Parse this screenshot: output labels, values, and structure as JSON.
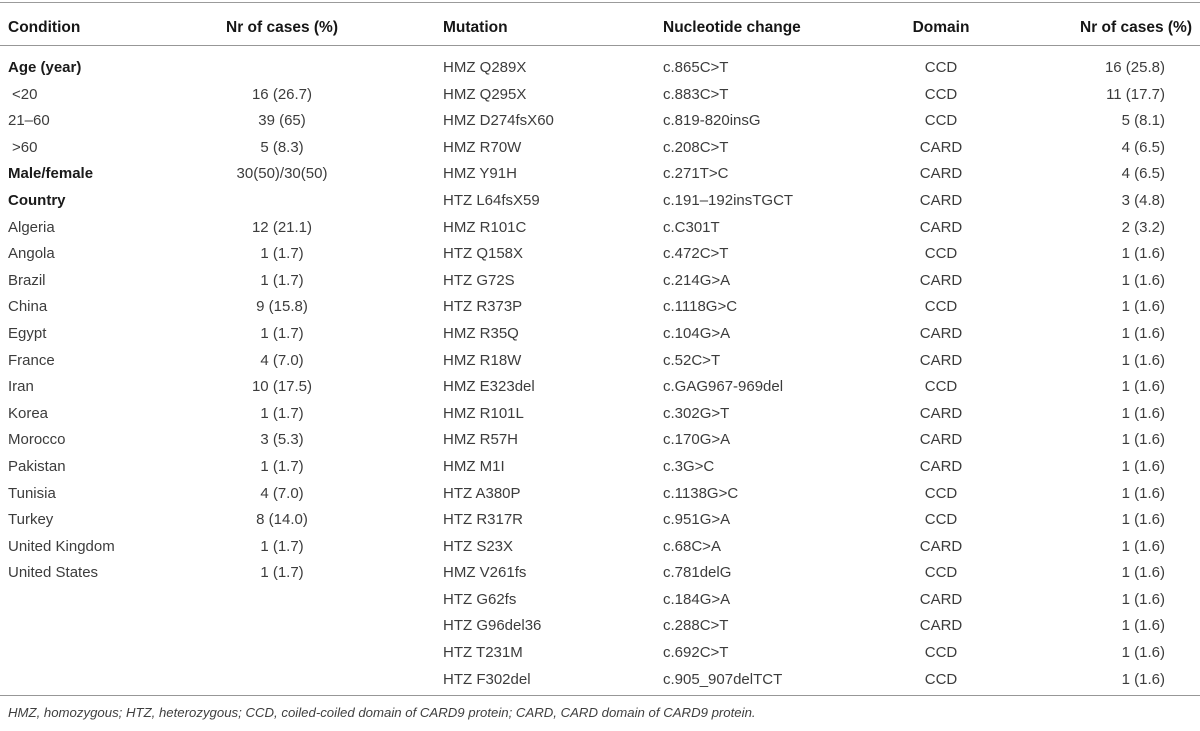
{
  "table": {
    "columns": [
      {
        "key": "condition",
        "label": "Condition"
      },
      {
        "key": "cases",
        "label": "Nr of cases (%)"
      },
      {
        "key": "mutation",
        "label": "Mutation"
      },
      {
        "key": "nucleotide",
        "label": "Nucleotide change"
      },
      {
        "key": "domain",
        "label": "Domain"
      },
      {
        "key": "cases2",
        "label": "Nr of cases (%)"
      }
    ],
    "rows": [
      {
        "condition": "Age (year)",
        "bold": true,
        "cases": "",
        "mutation": "HMZ Q289X",
        "nucleotide": "c.865C>T",
        "domain": "CCD",
        "cases2": "16 (25.8)"
      },
      {
        "condition": "<20",
        "indent": true,
        "cases": "16 (26.7)",
        "mutation": "HMZ Q295X",
        "nucleotide": "c.883C>T",
        "domain": "CCD",
        "cases2": "11 (17.7)"
      },
      {
        "condition": "21–60",
        "cases": "39 (65)",
        "mutation": "HMZ D274fsX60",
        "nucleotide": "c.819-820insG",
        "domain": "CCD",
        "cases2": "5 (8.1)"
      },
      {
        "condition": ">60",
        "indent": true,
        "cases": "5 (8.3)",
        "mutation": "HMZ R70W",
        "nucleotide": "c.208C>T",
        "domain": "CARD",
        "cases2": "4 (6.5)"
      },
      {
        "condition": "Male/female",
        "bold": true,
        "cases": "30(50)/30(50)",
        "mutation": "HMZ Y91H",
        "nucleotide": "c.271T>C",
        "domain": "CARD",
        "cases2": "4 (6.5)"
      },
      {
        "condition": "Country",
        "bold": true,
        "cases": "",
        "mutation": "HTZ L64fsX59",
        "nucleotide": "c.191–192insTGCT",
        "domain": "CARD",
        "cases2": "3 (4.8)"
      },
      {
        "condition": "Algeria",
        "cases": "12 (21.1)",
        "mutation": "HMZ R101C",
        "nucleotide": "c.C301T",
        "domain": "CARD",
        "cases2": "2 (3.2)"
      },
      {
        "condition": "Angola",
        "cases": "1 (1.7)",
        "mutation": "HTZ Q158X",
        "nucleotide": "c.472C>T",
        "domain": "CCD",
        "cases2": "1 (1.6)"
      },
      {
        "condition": "Brazil",
        "cases": "1 (1.7)",
        "mutation": "HTZ G72S",
        "nucleotide": "c.214G>A",
        "domain": "CARD",
        "cases2": "1 (1.6)"
      },
      {
        "condition": "China",
        "cases": "9 (15.8)",
        "mutation": "HTZ R373P",
        "nucleotide": "c.1118G>C",
        "domain": "CCD",
        "cases2": "1 (1.6)"
      },
      {
        "condition": "Egypt",
        "cases": "1 (1.7)",
        "mutation": "HMZ R35Q",
        "nucleotide": "c.104G>A",
        "domain": "CARD",
        "cases2": "1 (1.6)"
      },
      {
        "condition": "France",
        "cases": "4 (7.0)",
        "mutation": "HMZ R18W",
        "nucleotide": "c.52C>T",
        "domain": "CARD",
        "cases2": "1 (1.6)"
      },
      {
        "condition": "Iran",
        "cases": "10 (17.5)",
        "mutation": "HMZ E323del",
        "nucleotide": "c.GAG967-969del",
        "domain": "CCD",
        "cases2": "1 (1.6)"
      },
      {
        "condition": "Korea",
        "cases": "1 (1.7)",
        "mutation": "HMZ R101L",
        "nucleotide": "c.302G>T",
        "domain": "CARD",
        "cases2": "1 (1.6)"
      },
      {
        "condition": "Morocco",
        "cases": "3 (5.3)",
        "mutation": "HMZ R57H",
        "nucleotide": "c.170G>A",
        "domain": "CARD",
        "cases2": "1 (1.6)"
      },
      {
        "condition": "Pakistan",
        "cases": "1 (1.7)",
        "mutation": "HMZ M1I",
        "nucleotide": "c.3G>C",
        "domain": "CARD",
        "cases2": "1 (1.6)"
      },
      {
        "condition": "Tunisia",
        "cases": "4 (7.0)",
        "mutation": "HTZ A380P",
        "nucleotide": "c.1138G>C",
        "domain": "CCD",
        "cases2": "1 (1.6)"
      },
      {
        "condition": "Turkey",
        "cases": "8 (14.0)",
        "mutation": "HTZ R317R",
        "nucleotide": "c.951G>A",
        "domain": "CCD",
        "cases2": "1 (1.6)"
      },
      {
        "condition": "United Kingdom",
        "cases": "1 (1.7)",
        "mutation": "HTZ S23X",
        "nucleotide": "c.68C>A",
        "domain": "CARD",
        "cases2": "1 (1.6)"
      },
      {
        "condition": "United States",
        "cases": "1 (1.7)",
        "mutation": "HMZ V261fs",
        "nucleotide": "c.781delG",
        "domain": "CCD",
        "cases2": "1 (1.6)"
      },
      {
        "condition": "",
        "cases": "",
        "mutation": "HTZ G62fs",
        "nucleotide": "c.184G>A",
        "domain": "CARD",
        "cases2": "1 (1.6)"
      },
      {
        "condition": "",
        "cases": "",
        "mutation": "HTZ G96del36",
        "nucleotide": "c.288C>T",
        "domain": "CARD",
        "cases2": "1 (1.6)"
      },
      {
        "condition": "",
        "cases": "",
        "mutation": "HTZ T231M",
        "nucleotide": "c.692C>T",
        "domain": "CCD",
        "cases2": "1 (1.6)"
      },
      {
        "condition": "",
        "cases": "",
        "mutation": "HTZ F302del",
        "nucleotide": "c.905_907delTCT",
        "domain": "CCD",
        "cases2": "1 (1.6)"
      }
    ],
    "footnote": "HMZ, homozygous; HTZ, heterozygous; CCD, coiled-coiled domain of CARD9 protein; CARD, CARD domain of CARD9 protein.",
    "colors": {
      "rule": "#979797",
      "header_text": "#161616",
      "body_text": "#3c3c3c",
      "background": "#ffffff"
    }
  }
}
